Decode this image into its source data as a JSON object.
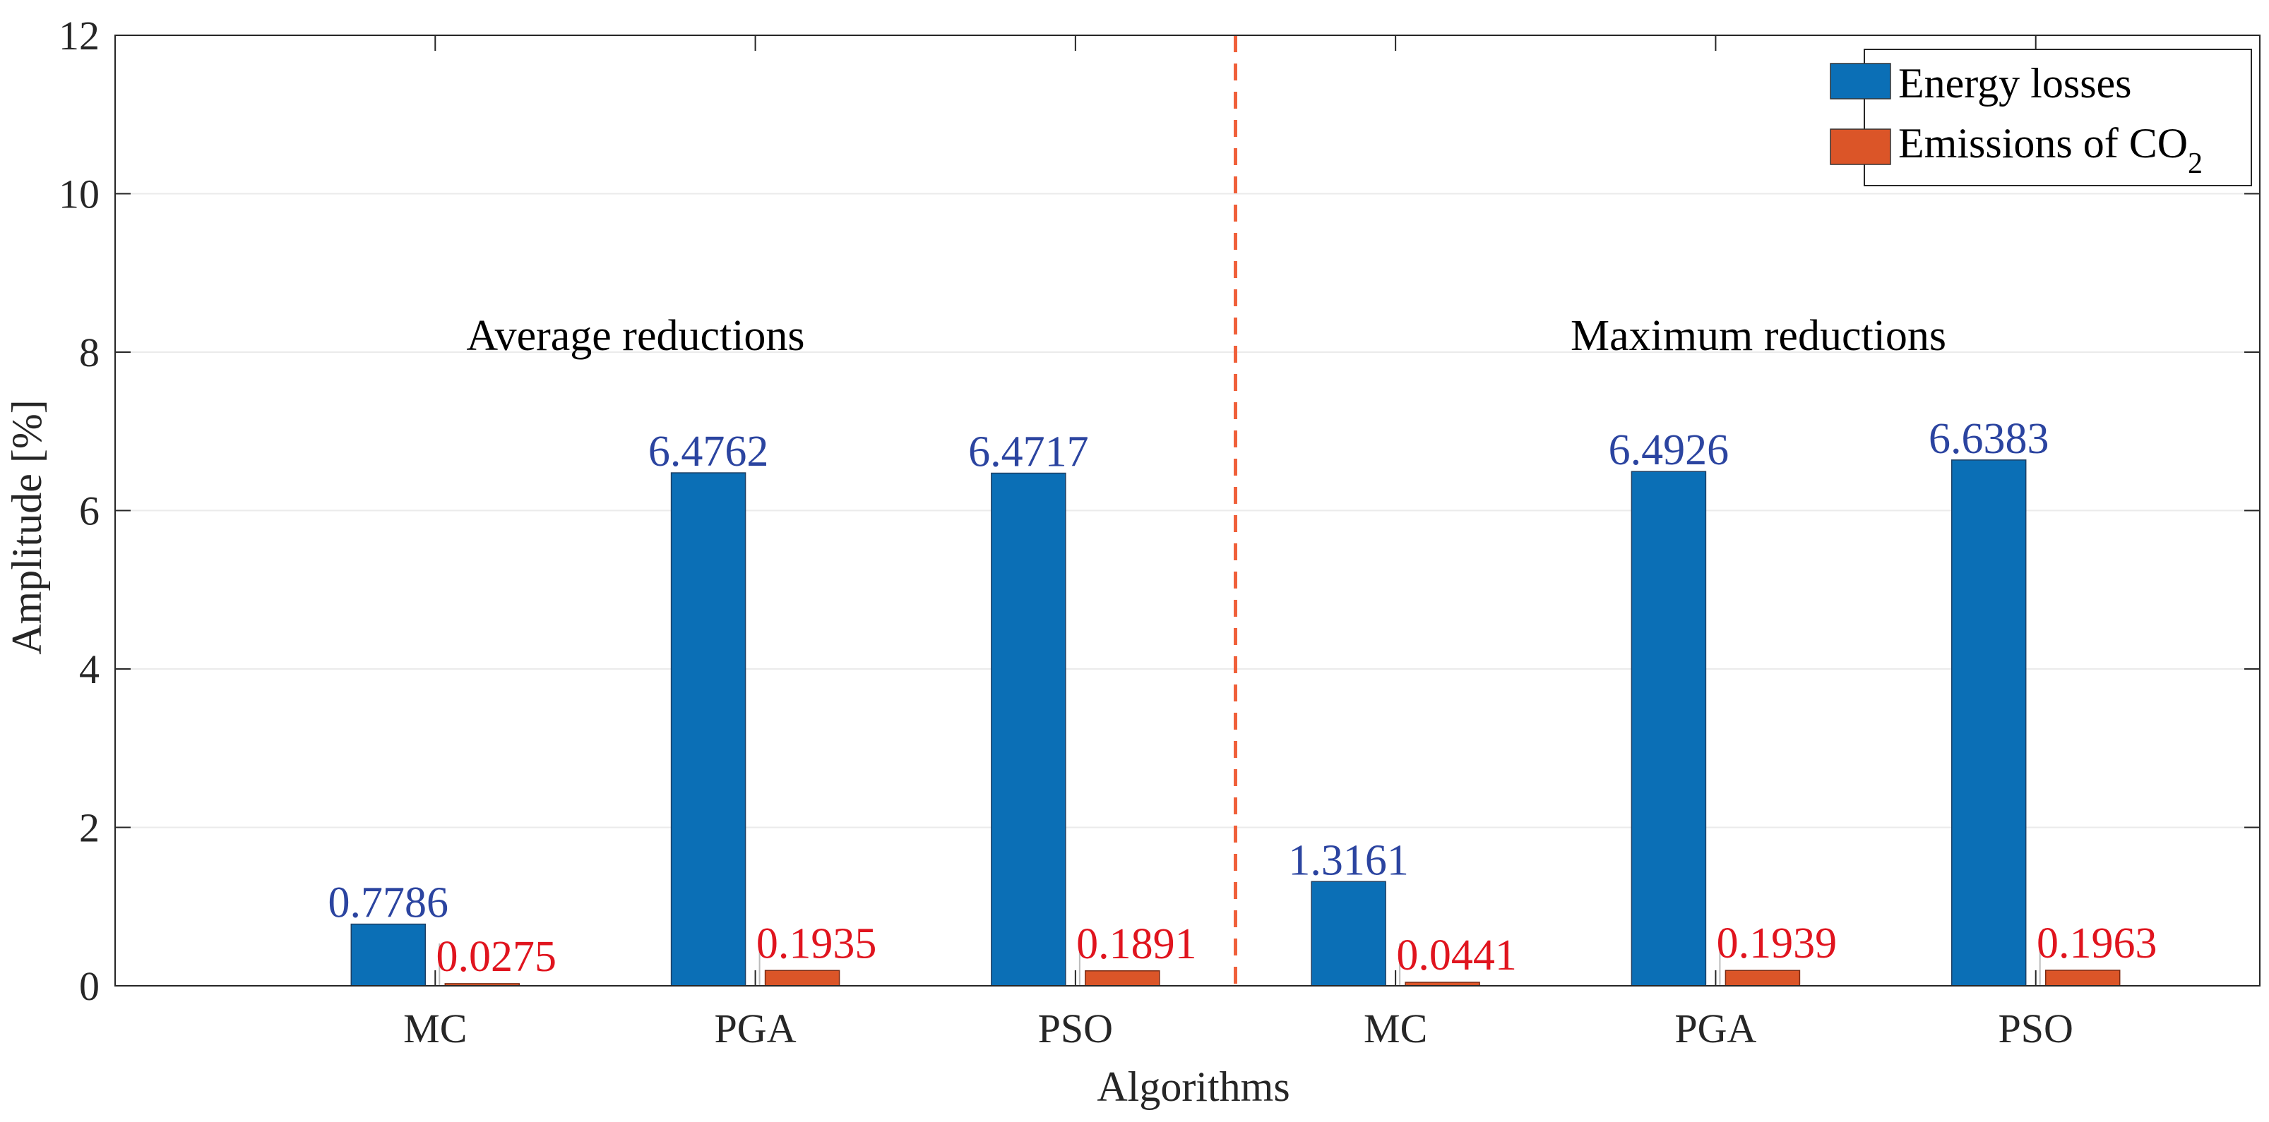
{
  "chart_data": {
    "type": "bar",
    "xlabel": "Algorithms",
    "ylabel": "Amplitude [%]",
    "ylim": [
      0,
      12
    ],
    "yticks": [
      "0",
      "2",
      "4",
      "6",
      "8",
      "10",
      "12"
    ],
    "ytick_values": [
      0,
      2,
      4,
      6,
      8,
      10,
      12
    ],
    "categories": [
      "MC",
      "PGA",
      "PSO",
      "MC",
      "PGA",
      "PSO"
    ],
    "groups": [
      "Average reductions",
      "Maximum reductions"
    ],
    "grid": true,
    "legend_position": "top-right",
    "series": [
      {
        "name": "Energy losses",
        "color": "#0b6fb6",
        "label_color": "#2b44a0",
        "values": [
          0.7786,
          6.4762,
          6.4717,
          1.3161,
          6.4926,
          6.6383
        ],
        "labels": [
          "0.7786",
          "6.4762",
          "6.4717",
          "1.3161",
          "6.4926",
          "6.6383"
        ]
      },
      {
        "name": "Emissions of CO",
        "name_subscript": "2",
        "color": "#db5528",
        "label_color": "#e0141e",
        "values": [
          0.0275,
          0.1935,
          0.1891,
          0.0441,
          0.1939,
          0.1963
        ],
        "labels": [
          "0.0275",
          "0.1935",
          "0.1891",
          "0.0441",
          "0.1939",
          "0.1963"
        ]
      }
    ],
    "divider_color": "#f0603a"
  }
}
